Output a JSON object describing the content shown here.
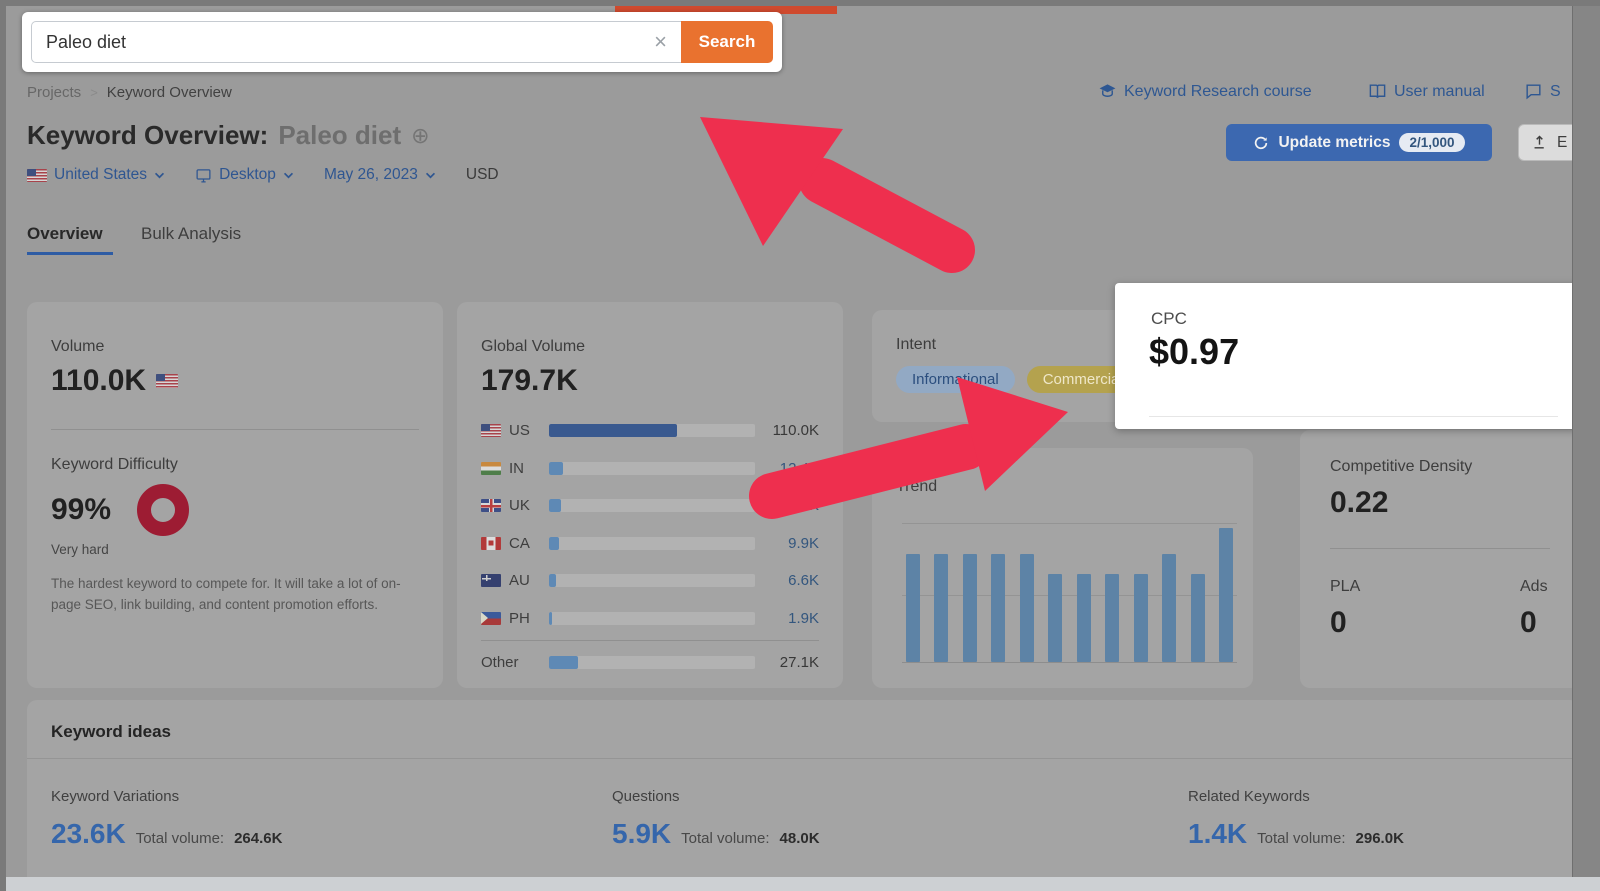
{
  "colors": {
    "background_dim": "#9b9b9b",
    "card": "#a4a4a4",
    "accent_blue": "#2f5691",
    "button_blue": "#3c68b0",
    "search_orange": "#e9722f",
    "arrow_red": "#ee2f4e",
    "kd_ring_red": "#9d1c33",
    "trend_bar_blue": "#5d83a6",
    "spotlight_white": "#ffffff"
  },
  "search_bar": {
    "value": "Paleo diet",
    "button_label": "Search",
    "clear_icon": "×"
  },
  "breadcrumb": {
    "items": [
      "Projects",
      "Keyword Overview"
    ],
    "separator": ">"
  },
  "header_links": {
    "course": "Keyword Research course",
    "manual": "User manual",
    "feedback_truncated": "S"
  },
  "title": {
    "prefix": "Keyword Overview:",
    "keyword": "Paleo diet",
    "add_icon": "⊕"
  },
  "actions": {
    "update_metrics_label": "Update metrics",
    "update_metrics_count": "2/1,000",
    "export_label_truncated": "E"
  },
  "filters": {
    "country": "United States",
    "device": "Desktop",
    "date": "May 26, 2023",
    "currency": "USD"
  },
  "tabs": [
    {
      "label": "Overview",
      "active": true
    },
    {
      "label": "Bulk Analysis",
      "active": false
    }
  ],
  "volume_card": {
    "label": "Volume",
    "value": "110.0K",
    "kd_label": "Keyword Difficulty",
    "kd_value": "99%",
    "kd_level": "Very hard",
    "kd_description": "The hardest keyword to compete for. It will take a lot of on-page SEO, link building, and content promotion efforts."
  },
  "global_volume": {
    "label": "Global Volume",
    "value": "179.7K",
    "rows": [
      {
        "code": "US",
        "value": "110.0K",
        "pct": 62,
        "fill": "dark",
        "value_style": "dark"
      },
      {
        "code": "IN",
        "value": "12.4K",
        "pct": 7,
        "fill": "light",
        "value_style": "blue"
      },
      {
        "code": "UK",
        "value": "12.1K",
        "pct": 6,
        "fill": "light",
        "value_style": "blue"
      },
      {
        "code": "CA",
        "value": "9.9K",
        "pct": 5,
        "fill": "light",
        "value_style": "blue"
      },
      {
        "code": "AU",
        "value": "6.6K",
        "pct": 3.5,
        "fill": "light",
        "value_style": "blue"
      },
      {
        "code": "PH",
        "value": "1.9K",
        "pct": 1.5,
        "fill": "light",
        "value_style": "blue"
      },
      {
        "code": "Other",
        "value": "27.1K",
        "pct": 14,
        "fill": "light",
        "value_style": "dark"
      }
    ]
  },
  "intent_card": {
    "label": "Intent",
    "pills": [
      {
        "label": "Informational"
      },
      {
        "label": "Commercial"
      }
    ]
  },
  "cpc_card": {
    "label": "CPC",
    "value": "$0.97"
  },
  "trend_card": {
    "label": "Trend"
  },
  "cd_card": {
    "label": "Competitive Density",
    "value": "0.22",
    "pla_label": "PLA",
    "pla_value": "0",
    "ads_label": "Ads",
    "ads_value": "0"
  },
  "keyword_ideas": {
    "title": "Keyword ideas",
    "stats": [
      {
        "label": "Keyword Variations",
        "value": "23.6K",
        "total_label": "Total volume:",
        "total": "264.6K"
      },
      {
        "label": "Questions",
        "value": "5.9K",
        "total_label": "Total volume:",
        "total": "48.0K"
      },
      {
        "label": "Related Keywords",
        "value": "1.4K",
        "total_label": "Total volume:",
        "total": "296.0K"
      }
    ]
  },
  "chart_data": [
    {
      "type": "bar",
      "title": "Trend",
      "bars": 12,
      "values_relative": [
        0.78,
        0.78,
        0.78,
        0.78,
        0.78,
        0.64,
        0.64,
        0.64,
        0.64,
        0.78,
        0.64,
        0.97
      ],
      "ylim": [
        0,
        1
      ],
      "xlabel": "",
      "ylabel": "",
      "grid": "top and middle horizontal gridlines, no tick labels"
    },
    {
      "type": "bar",
      "title": "Global Volume by country",
      "categories": [
        "US",
        "IN",
        "UK",
        "CA",
        "AU",
        "PH",
        "Other"
      ],
      "values": [
        "110.0K",
        "12.4K",
        "12.1K",
        "9.9K",
        "6.6K",
        "1.9K",
        "27.1K"
      ],
      "bar_pct": [
        62,
        7,
        6,
        5,
        3.5,
        1.5,
        14
      ]
    }
  ],
  "annotations": {
    "spotlights": [
      "search-bar",
      "cpc-card"
    ],
    "arrows": [
      {
        "points_to": "page header area"
      },
      {
        "points_to": "intent / cpc area"
      }
    ]
  }
}
